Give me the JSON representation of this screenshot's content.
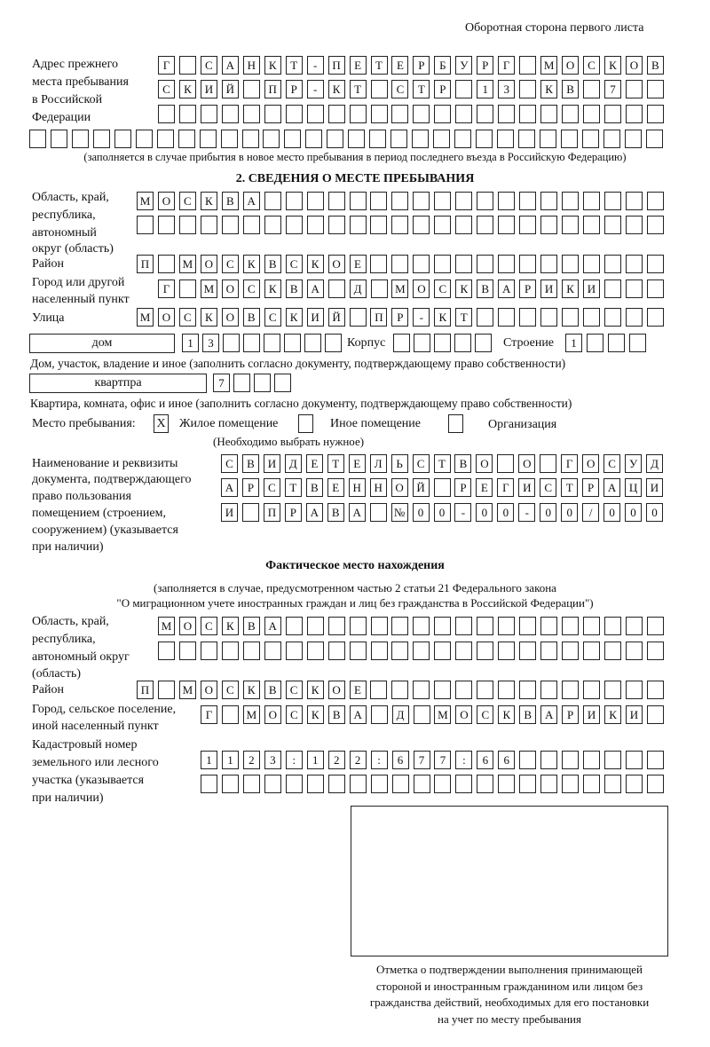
{
  "header": {
    "page_side": "Оборотная сторона первого листа"
  },
  "previous_address": {
    "label": [
      "Адрес прежнего",
      "места пребывания",
      "в Российской",
      "Федерации"
    ],
    "rows": [
      [
        "Г",
        "",
        "С",
        "А",
        "Н",
        "К",
        "Т",
        "-",
        "П",
        "Е",
        "Т",
        "Е",
        "Р",
        "Б",
        "У",
        "Р",
        "Г",
        "",
        "М",
        "О",
        "С",
        "К",
        "О",
        "В"
      ],
      [
        "С",
        "К",
        "И",
        "Й",
        "",
        "П",
        "Р",
        "-",
        "К",
        "Т",
        "",
        "С",
        "Т",
        "Р",
        "",
        "1",
        "3",
        "",
        "К",
        "В",
        "",
        "7",
        "",
        ""
      ],
      [
        "",
        "",
        "",
        "",
        "",
        "",
        "",
        "",
        "",
        "",
        "",
        "",
        "",
        "",
        "",
        "",
        "",
        "",
        "",
        "",
        "",
        "",
        "",
        ""
      ],
      [
        "",
        "",
        "",
        "",
        "",
        "",
        "",
        "",
        "",
        "",
        "",
        "",
        "",
        "",
        "",
        "",
        "",
        "",
        "",
        "",
        "",
        "",
        "",
        "",
        "",
        "",
        "",
        "",
        "",
        ""
      ]
    ],
    "note": "(заполняется в случае прибытия в новое место пребывания в период последнего въезда в Российскую Федерацию)"
  },
  "section2": {
    "title": "2. СВЕДЕНИЯ О МЕСТЕ ПРЕБЫВАНИЯ",
    "region_label": [
      "Область, край,",
      "республика,",
      "автономный",
      "округ (область)"
    ],
    "region_rows": [
      [
        "М",
        "О",
        "С",
        "К",
        "В",
        "А",
        "",
        "",
        "",
        "",
        "",
        "",
        "",
        "",
        "",
        "",
        "",
        "",
        "",
        "",
        "",
        "",
        "",
        "",
        ""
      ],
      [
        "",
        "",
        "",
        "",
        "",
        "",
        "",
        "",
        "",
        "",
        "",
        "",
        "",
        "",
        "",
        "",
        "",
        "",
        "",
        "",
        "",
        "",
        "",
        "",
        ""
      ]
    ],
    "district_label": "Район",
    "district_row": [
      "П",
      "",
      "М",
      "О",
      "С",
      "К",
      "В",
      "С",
      "К",
      "О",
      "Е",
      "",
      "",
      "",
      "",
      "",
      "",
      "",
      "",
      "",
      "",
      "",
      "",
      "",
      ""
    ],
    "city_label": [
      "Город или другой",
      "населенный пункт"
    ],
    "city_row": [
      "Г",
      "",
      "М",
      "О",
      "С",
      "К",
      "В",
      "А",
      "",
      "Д",
      "",
      "М",
      "О",
      "С",
      "К",
      "В",
      "А",
      "Р",
      "И",
      "К",
      "И",
      "",
      "",
      ""
    ],
    "street_label": "Улица",
    "street_row": [
      "М",
      "О",
      "С",
      "К",
      "О",
      "В",
      "С",
      "К",
      "И",
      "Й",
      "",
      "П",
      "Р",
      "-",
      "К",
      "Т",
      "",
      "",
      "",
      "",
      "",
      "",
      "",
      "",
      ""
    ],
    "house": {
      "type_value": "дом",
      "number_cells": [
        "1",
        "3",
        "",
        "",
        "",
        "",
        "",
        ""
      ],
      "korpus_label": "Корпус",
      "korpus_cells": [
        "",
        "",
        "",
        "",
        ""
      ],
      "building_label": "Строение",
      "building_cells": [
        "1",
        "",
        "",
        ""
      ],
      "hint": "Дом, участок, владение и иное (заполнить согласно документу, подтверждающему право собственности)"
    },
    "apartment": {
      "type_value": "квартпра",
      "number_cells": [
        "7",
        "",
        "",
        ""
      ],
      "hint": "Квартира, комната, офис и иное (заполнить согласно документу, подтверждающему право собственности)"
    },
    "place_type": {
      "label": "Место пребывания:",
      "options": [
        {
          "label": "Жилое помещение",
          "mark": "X",
          "checked": true
        },
        {
          "label": "Иное помещение",
          "mark": "",
          "checked": false
        },
        {
          "label": "Организация",
          "mark": "",
          "checked": false
        }
      ],
      "hint": "(Необходимо выбрать нужное)"
    },
    "document_label": [
      "Наименование и реквизиты",
      "документа, подтверждающего",
      "право пользования",
      "помещением (строением,",
      "сооружением) (указывается",
      "при наличии)"
    ],
    "document_rows": [
      [
        "С",
        "В",
        "И",
        "Д",
        "Е",
        "Т",
        "Е",
        "Л",
        "Ь",
        "С",
        "Т",
        "В",
        "О",
        "",
        "О",
        "",
        "Г",
        "О",
        "С",
        "У",
        "Д"
      ],
      [
        "А",
        "Р",
        "С",
        "Т",
        "В",
        "Е",
        "Н",
        "Н",
        "О",
        "Й",
        "",
        "Р",
        "Е",
        "Г",
        "И",
        "С",
        "Т",
        "Р",
        "А",
        "Ц",
        "И"
      ],
      [
        "И",
        "",
        "П",
        "Р",
        "А",
        "В",
        "А",
        "",
        "№",
        "0",
        "0",
        "-",
        "0",
        "0",
        "-",
        "0",
        "0",
        "/",
        "0",
        "0",
        "0"
      ]
    ]
  },
  "actual_location": {
    "title": "Фактическое место нахождения",
    "note": [
      "(заполняется в случае, предусмотренном частью 2 статьи 21 Федерального закона",
      "\"О миграционном учете иностранных граждан и лиц без гражданства в Российской Федерации\")"
    ],
    "region_label": [
      "Область, край,",
      "республика,",
      "автономный округ",
      "(область)"
    ],
    "region_rows": [
      [
        "М",
        "О",
        "С",
        "К",
        "В",
        "А",
        "",
        "",
        "",
        "",
        "",
        "",
        "",
        "",
        "",
        "",
        "",
        "",
        "",
        "",
        "",
        "",
        "",
        ""
      ],
      [
        "",
        "",
        "",
        "",
        "",
        "",
        "",
        "",
        "",
        "",
        "",
        "",
        "",
        "",
        "",
        "",
        "",
        "",
        "",
        "",
        "",
        "",
        "",
        ""
      ]
    ],
    "district_label": "Район",
    "district_row": [
      "П",
      "",
      "М",
      "О",
      "С",
      "К",
      "В",
      "С",
      "К",
      "О",
      "Е",
      "",
      "",
      "",
      "",
      "",
      "",
      "",
      "",
      "",
      "",
      "",
      "",
      "",
      ""
    ],
    "city_label": [
      "Город, сельское поселение,",
      "иной населенный пункт"
    ],
    "city_row": [
      "Г",
      "",
      "М",
      "О",
      "С",
      "К",
      "В",
      "А",
      "",
      "Д",
      "",
      "М",
      "О",
      "С",
      "К",
      "В",
      "А",
      "Р",
      "И",
      "К",
      "И",
      ""
    ],
    "cadastral_label": [
      "Кадастровый номер",
      "земельного или лесного",
      "участка (указывается",
      "при наличии)"
    ],
    "cadastral_rows": [
      [
        "1",
        "1",
        "2",
        "3",
        ":",
        "1",
        "2",
        "2",
        ":",
        "6",
        "7",
        "7",
        ":",
        "6",
        "6",
        "",
        "",
        "",
        "",
        "",
        "",
        ""
      ],
      [
        "",
        "",
        "",
        "",
        "",
        "",
        "",
        "",
        "",
        "",
        "",
        "",
        "",
        "",
        "",
        "",
        "",
        "",
        "",
        "",
        "",
        ""
      ]
    ]
  },
  "confirmation": {
    "caption": [
      "Отметка о подтверждении выполнения принимающей",
      "стороной и иностранным гражданином или лицом без",
      "гражданства действий, необходимых для его постановки",
      "на учет по месту пребывания"
    ]
  }
}
